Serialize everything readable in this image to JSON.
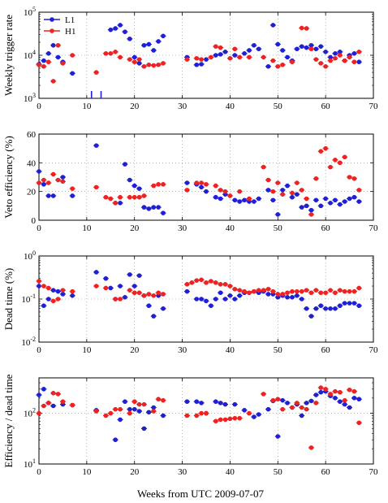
{
  "xlabel": "Weeks from UTC 2009-07-07",
  "chart_data": [
    {
      "type": "scatter",
      "ylabel": "Weekly trigger rate",
      "yscale": "log",
      "ylim": [
        1000,
        100000
      ],
      "xlim": [
        0,
        70
      ],
      "xticks": [
        0,
        10,
        20,
        30,
        40,
        50,
        60,
        70
      ],
      "yticks": [
        1000,
        10000,
        100000
      ],
      "ytick_labels": [
        {
          "base": "10",
          "exp": "3"
        },
        {
          "base": "10",
          "exp": "4"
        },
        {
          "base": "10",
          "exp": "5"
        }
      ],
      "grid": true,
      "legend": {
        "placement": "top-left",
        "entries": [
          {
            "name": "L1",
            "color": "#1f1fd6"
          },
          {
            "name": "H1",
            "color": "#ee2222"
          }
        ]
      },
      "series": [
        {
          "name": "L1",
          "color": "#1f1fd6",
          "x": [
            0,
            1,
            2,
            3,
            4,
            5,
            7,
            15,
            16,
            17,
            18,
            19,
            20,
            21,
            22,
            23,
            24,
            25,
            26,
            31,
            33,
            34,
            35,
            37,
            38,
            39,
            41,
            43,
            44,
            45,
            46,
            48,
            49,
            50,
            51,
            52,
            53,
            54,
            55,
            56,
            57,
            58,
            59,
            60,
            61,
            62,
            63,
            64,
            65,
            66,
            67
          ],
          "y": [
            6200,
            7500,
            11000,
            17000,
            9000,
            7000,
            3800,
            39000,
            42000,
            50000,
            35000,
            24000,
            9000,
            6500,
            17000,
            18000,
            13000,
            21000,
            28000,
            9000,
            6000,
            6200,
            8000,
            10000,
            10500,
            12000,
            10000,
            11000,
            13000,
            17000,
            14000,
            5500,
            50000,
            18000,
            13000,
            9000,
            7500,
            14000,
            16000,
            15000,
            17000,
            14000,
            16000,
            12000,
            9000,
            11000,
            12000,
            7500,
            10000,
            11000,
            7000
          ]
        },
        {
          "name": "H1",
          "color": "#ee2222",
          "x": [
            0,
            1,
            2,
            3,
            4,
            5,
            7,
            12,
            14,
            15,
            16,
            17,
            19,
            20,
            21,
            22,
            23,
            24,
            25,
            26,
            31,
            33,
            34,
            36,
            37,
            38,
            40,
            41,
            42,
            44,
            47,
            49,
            50,
            51,
            53,
            55,
            56,
            57,
            58,
            59,
            60,
            61,
            62,
            63,
            64,
            65,
            66,
            67
          ],
          "y": [
            6000,
            5500,
            7000,
            2500,
            17000,
            6500,
            10000,
            4000,
            11000,
            11000,
            12000,
            9000,
            8000,
            7000,
            8000,
            5500,
            6000,
            5800,
            6000,
            6500,
            8000,
            8500,
            8000,
            9000,
            16000,
            15000,
            8500,
            14000,
            9000,
            9000,
            9000,
            7500,
            5500,
            6000,
            7000,
            43000,
            42000,
            14000,
            8000,
            6500,
            5500,
            7500,
            8500,
            10000,
            7500,
            9000,
            7000,
            12000
          ]
        }
      ],
      "lower_limit_markers": {
        "color": "#1f1fd6",
        "x": [
          11,
          13
        ]
      }
    },
    {
      "type": "scatter",
      "ylabel": "Veto efficiency (%)",
      "yscale": "linear",
      "ylim": [
        0,
        60
      ],
      "xlim": [
        0,
        70
      ],
      "xticks": [
        0,
        10,
        20,
        30,
        40,
        50,
        60,
        70
      ],
      "yticks": [
        0,
        20,
        40,
        60
      ],
      "ytick_labels": [
        "0",
        "20",
        "40",
        "60"
      ],
      "grid": true,
      "series": [
        {
          "name": "L1",
          "color": "#1f1fd6",
          "x": [
            0,
            1,
            2,
            3,
            5,
            7,
            12,
            16,
            17,
            18,
            19,
            20,
            21,
            22,
            23,
            24,
            25,
            26,
            31,
            33,
            34,
            35,
            37,
            38,
            39,
            41,
            42,
            43,
            44,
            45,
            46,
            48,
            49,
            50,
            51,
            52,
            53,
            54,
            55,
            56,
            57,
            58,
            59,
            60,
            61,
            62,
            63,
            64,
            65,
            66,
            67
          ],
          "y": [
            34,
            25,
            17,
            17,
            30,
            17,
            52,
            12,
            12,
            39,
            28,
            24,
            22,
            9,
            8,
            9,
            9,
            5,
            26,
            25,
            23,
            20,
            16,
            15,
            18,
            14,
            13,
            14,
            13,
            13,
            15,
            21,
            14,
            4,
            21,
            24,
            16,
            18,
            9,
            10,
            7,
            14,
            10,
            15,
            12,
            14,
            11,
            13,
            15,
            16,
            13
          ]
        },
        {
          "name": "H1",
          "color": "#ee2222",
          "x": [
            0,
            1,
            2,
            3,
            4,
            5,
            7,
            12,
            14,
            15,
            16,
            17,
            19,
            20,
            21,
            22,
            24,
            25,
            26,
            31,
            33,
            34,
            35,
            37,
            38,
            39,
            40,
            42,
            44,
            47,
            48,
            49,
            50,
            51,
            53,
            54,
            55,
            56,
            57,
            58,
            59,
            60,
            61,
            62,
            63,
            64,
            65,
            66,
            67
          ],
          "y": [
            26,
            28,
            26,
            32,
            28,
            27,
            22,
            23,
            16,
            15,
            12,
            16,
            16,
            16,
            16,
            17,
            24,
            25,
            25,
            21,
            26,
            26,
            25,
            24,
            21,
            20,
            17,
            20,
            15,
            37,
            28,
            20,
            26,
            18,
            19,
            26,
            21,
            15,
            4,
            29,
            48,
            50,
            37,
            42,
            40,
            44,
            30,
            29,
            21
          ]
        }
      ]
    },
    {
      "type": "scatter",
      "ylabel": "Dead time (%)",
      "yscale": "log",
      "ylim": [
        0.01,
        1
      ],
      "xlim": [
        0,
        70
      ],
      "xticks": [
        0,
        10,
        20,
        30,
        40,
        50,
        60,
        70
      ],
      "yticks": [
        0.01,
        0.1,
        1
      ],
      "ytick_labels": [
        {
          "base": "10",
          "exp": "-2"
        },
        {
          "base": "10",
          "exp": "-1"
        },
        {
          "base": "10",
          "exp": "0"
        }
      ],
      "grid": true,
      "series": [
        {
          "name": "L1",
          "color": "#1f1fd6",
          "x": [
            0,
            1,
            2,
            3,
            4,
            5,
            7,
            12,
            14,
            15,
            16,
            17,
            18,
            19,
            20,
            21,
            22,
            23,
            24,
            25,
            26,
            31,
            33,
            34,
            35,
            36,
            37,
            38,
            39,
            40,
            41,
            42,
            43,
            44,
            45,
            46,
            47,
            48,
            49,
            50,
            51,
            52,
            53,
            54,
            55,
            56,
            57,
            58,
            59,
            60,
            61,
            62,
            63,
            64,
            65,
            66,
            67
          ],
          "y": [
            0.2,
            0.07,
            0.1,
            0.16,
            0.15,
            0.13,
            0.12,
            0.42,
            0.3,
            0.18,
            0.1,
            0.2,
            0.11,
            0.37,
            0.2,
            0.35,
            0.12,
            0.07,
            0.04,
            0.12,
            0.06,
            0.15,
            0.1,
            0.1,
            0.09,
            0.07,
            0.1,
            0.14,
            0.1,
            0.12,
            0.1,
            0.12,
            0.14,
            0.14,
            0.15,
            0.14,
            0.15,
            0.13,
            0.13,
            0.11,
            0.12,
            0.11,
            0.11,
            0.12,
            0.1,
            0.06,
            0.04,
            0.06,
            0.07,
            0.06,
            0.06,
            0.06,
            0.07,
            0.08,
            0.08,
            0.08,
            0.07
          ]
        },
        {
          "name": "H1",
          "color": "#ee2222",
          "x": [
            0,
            1,
            2,
            3,
            4,
            5,
            7,
            12,
            14,
            16,
            17,
            19,
            20,
            21,
            22,
            23,
            24,
            25,
            26,
            31,
            32,
            33,
            34,
            35,
            36,
            37,
            38,
            39,
            40,
            41,
            42,
            43,
            44,
            45,
            46,
            47,
            48,
            49,
            50,
            51,
            52,
            53,
            54,
            55,
            56,
            57,
            58,
            59,
            60,
            61,
            62,
            63,
            64,
            65,
            66,
            67
          ],
          "y": [
            0.26,
            0.2,
            0.18,
            0.09,
            0.1,
            0.16,
            0.15,
            0.2,
            0.18,
            0.1,
            0.1,
            0.16,
            0.14,
            0.14,
            0.12,
            0.13,
            0.12,
            0.14,
            0.13,
            0.22,
            0.24,
            0.27,
            0.28,
            0.24,
            0.26,
            0.24,
            0.22,
            0.22,
            0.2,
            0.17,
            0.16,
            0.15,
            0.14,
            0.15,
            0.16,
            0.16,
            0.17,
            0.15,
            0.13,
            0.13,
            0.14,
            0.15,
            0.15,
            0.15,
            0.16,
            0.14,
            0.16,
            0.14,
            0.14,
            0.16,
            0.14,
            0.16,
            0.15,
            0.15,
            0.15,
            0.18
          ]
        }
      ]
    },
    {
      "type": "scatter",
      "ylabel": "Efficiency / dead time",
      "yscale": "log",
      "ylim": [
        10,
        500
      ],
      "xlim": [
        0,
        70
      ],
      "xticks": [
        0,
        10,
        20,
        30,
        40,
        50,
        60,
        70
      ],
      "yticks": [
        10,
        100
      ],
      "ytick_labels": [
        {
          "base": "10",
          "exp": "1"
        },
        {
          "base": "10",
          "exp": "2"
        }
      ],
      "grid": true,
      "series": [
        {
          "name": "L1",
          "color": "#1f1fd6",
          "x": [
            0,
            1,
            2,
            3,
            5,
            7,
            12,
            16,
            17,
            18,
            19,
            20,
            21,
            22,
            23,
            24,
            26,
            31,
            33,
            34,
            35,
            37,
            38,
            39,
            41,
            43,
            45,
            46,
            48,
            49,
            50,
            51,
            52,
            53,
            54,
            55,
            56,
            57,
            58,
            59,
            60,
            61,
            62,
            63,
            64,
            65,
            66,
            67
          ],
          "y": [
            230,
            300,
            160,
            140,
            150,
            145,
            115,
            30,
            75,
            170,
            120,
            120,
            110,
            50,
            105,
            130,
            90,
            170,
            170,
            160,
            100,
            170,
            160,
            150,
            150,
            115,
            85,
            95,
            120,
            175,
            35,
            180,
            160,
            130,
            150,
            90,
            160,
            175,
            230,
            260,
            270,
            220,
            200,
            170,
            150,
            130,
            200,
            190
          ]
        },
        {
          "name": "H1",
          "color": "#ee2222",
          "x": [
            0,
            1,
            2,
            3,
            4,
            5,
            7,
            12,
            14,
            15,
            16,
            17,
            19,
            20,
            21,
            22,
            24,
            25,
            26,
            31,
            33,
            34,
            35,
            37,
            38,
            39,
            40,
            41,
            42,
            44,
            47,
            49,
            50,
            51,
            53,
            54,
            55,
            56,
            57,
            58,
            59,
            60,
            61,
            62,
            63,
            64,
            65,
            66,
            67
          ],
          "y": [
            100,
            140,
            160,
            250,
            240,
            170,
            145,
            110,
            90,
            100,
            120,
            120,
            100,
            170,
            150,
            150,
            110,
            190,
            180,
            90,
            90,
            100,
            100,
            70,
            75,
            75,
            78,
            80,
            80,
            100,
            240,
            180,
            190,
            120,
            130,
            160,
            130,
            120,
            21,
            160,
            320,
            300,
            240,
            270,
            260,
            180,
            290,
            270,
            65
          ]
        }
      ]
    }
  ]
}
